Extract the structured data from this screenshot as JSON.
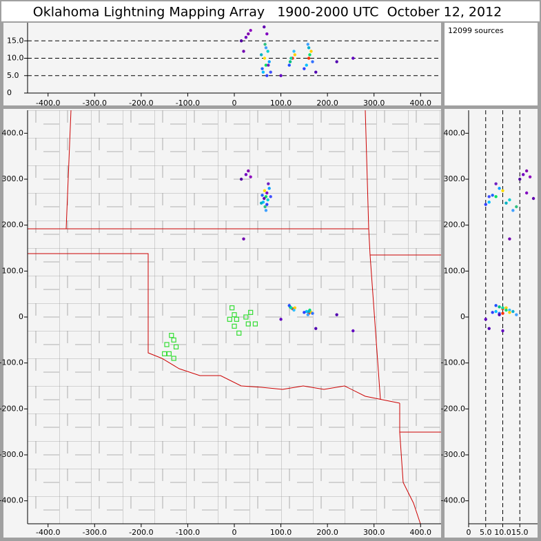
{
  "chart_data": {
    "type": "scatter",
    "title": "Oklahoma Lightning Mapping Array   1900-2000 UTC  October 12, 2012",
    "source_count": "12099 sources",
    "xlim": [
      -444,
      444
    ],
    "ylim": [
      -450,
      450
    ],
    "altlim": [
      0,
      20.2
    ],
    "xticks": [
      {
        "value": -400,
        "label": "-400.0"
      },
      {
        "value": -300,
        "label": "-300.0"
      },
      {
        "value": -200,
        "label": "-200.0"
      },
      {
        "value": -100,
        "label": "-100.0"
      },
      0,
      {
        "value": 100,
        "label": "100.0"
      },
      {
        "value": 200,
        "label": "200.0"
      },
      {
        "value": 300,
        "label": "300.0"
      },
      {
        "value": 400,
        "label": "400.0"
      }
    ],
    "yticks": [
      {
        "value": -400,
        "label": "-400.0"
      },
      {
        "value": -300,
        "label": "-300.0"
      },
      {
        "value": -200,
        "label": "-200.0"
      },
      {
        "value": -100,
        "label": "-100.0"
      },
      0,
      {
        "value": 100,
        "label": "100.0"
      },
      {
        "value": 200,
        "label": "200.0"
      },
      {
        "value": 300,
        "label": "300.0"
      },
      {
        "value": 400,
        "label": "400.0"
      }
    ],
    "altticks": [
      0,
      {
        "value": 5,
        "label": "5.0"
      },
      {
        "value": 10,
        "label": "10.0"
      },
      {
        "value": 15,
        "label": "15.0"
      }
    ],
    "alt_grid": true,
    "sources": {
      "x": [
        62,
        68,
        70,
        65,
        72,
        60,
        75,
        66,
        70,
        64,
        78,
        58,
        73,
        68,
        25,
        35,
        30,
        15,
        120,
        125,
        130,
        118,
        128,
        122,
        155,
        160,
        165,
        158,
        162,
        150,
        168,
        160,
        100,
        175,
        255,
        20,
        220
      ],
      "y": [
        250,
        262,
        245,
        275,
        255,
        265,
        280,
        240,
        270,
        258,
        262,
        248,
        290,
        232,
        310,
        305,
        318,
        300,
        22,
        18,
        20,
        25,
        15,
        20,
        12,
        8,
        10,
        5,
        15,
        10,
        8,
        12,
        -5,
        -25,
        -30,
        170,
        5
      ],
      "alt": [
        6,
        8,
        5,
        10,
        12,
        7,
        9,
        14,
        17,
        19,
        6,
        11,
        8,
        13,
        16,
        18,
        17,
        15,
        9,
        10,
        11,
        8,
        12,
        10,
        8,
        10,
        12,
        14,
        11,
        7,
        9,
        13,
        5,
        6,
        10,
        12,
        9
      ],
      "colors": [
        "#00c0ff",
        "#00e060",
        "#3040ff",
        "#ffe000",
        "#00d0d0",
        "#2060ff",
        "#00a0ff",
        "#30c080",
        "#8000c0",
        "#6000b0",
        "#4050ff",
        "#00b0c0",
        "#7020c0",
        "#40a0ff",
        "#7000c0",
        "#9010c0",
        "#8000b0",
        "#5000a0",
        "#00c080",
        "#ff2000",
        "#ffd000",
        "#2050ff",
        "#30c0ff",
        "#00e0a0",
        "#00c0ff",
        "#ff3000",
        "#ffd000",
        "#40a0ff",
        "#00e070",
        "#3040ff",
        "#3070ff",
        "#00b0d0",
        "#6000c0",
        "#5000b0",
        "#6000c0",
        "#7000b0",
        "#5000b0"
      ]
    },
    "stations": {
      "x": [
        -5,
        0,
        -10,
        5,
        25,
        30,
        35,
        45,
        0,
        10,
        -135,
        -145,
        -125,
        -140,
        -130,
        -130,
        -150
      ],
      "y": [
        20,
        5,
        -5,
        -5,
        0,
        -15,
        10,
        -15,
        -20,
        -35,
        -40,
        -60,
        -65,
        -80,
        -50,
        -90,
        -80
      ],
      "color": "#33dd33"
    }
  }
}
